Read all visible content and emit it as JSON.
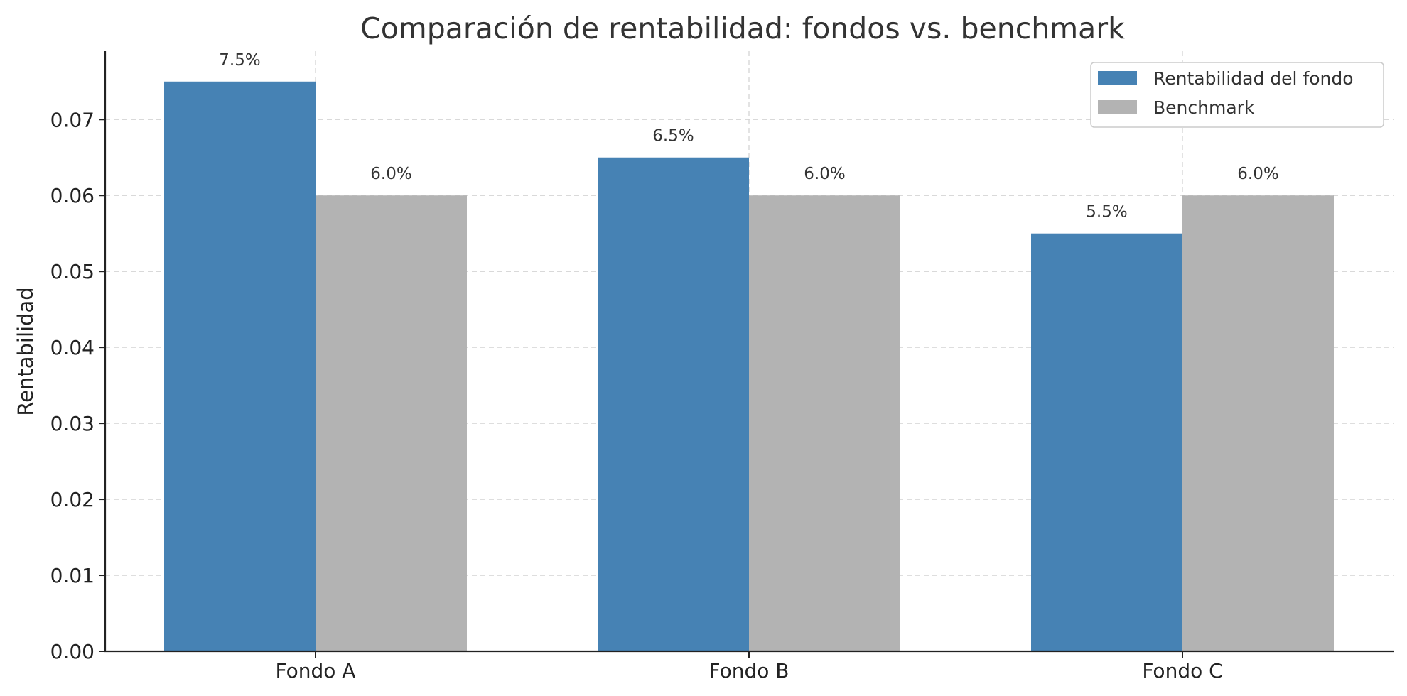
{
  "chart_data": {
    "type": "bar",
    "title": "Comparación de rentabilidad: fondos vs. benchmark",
    "xlabel": "",
    "ylabel": "Rentabilidad",
    "categories": [
      "Fondo A",
      "Fondo B",
      "Fondo C"
    ],
    "series": [
      {
        "name": "Rentabilidad del fondo",
        "values": [
          0.075,
          0.065,
          0.055
        ],
        "labels": [
          "7.5%",
          "6.5%",
          "5.5%"
        ],
        "color": "#4682b4"
      },
      {
        "name": "Benchmark",
        "values": [
          0.06,
          0.06,
          0.06
        ],
        "labels": [
          "6.0%",
          "6.0%",
          "6.0%"
        ],
        "color": "#b3b3b3"
      }
    ],
    "ylim": [
      0,
      0.079
    ],
    "yticks": [
      0.0,
      0.01,
      0.02,
      0.03,
      0.04,
      0.05,
      0.06,
      0.07
    ],
    "ytick_labels": [
      "0.00",
      "0.01",
      "0.02",
      "0.03",
      "0.04",
      "0.05",
      "0.06",
      "0.07"
    ],
    "grid": true,
    "legend_position": "top-right"
  }
}
